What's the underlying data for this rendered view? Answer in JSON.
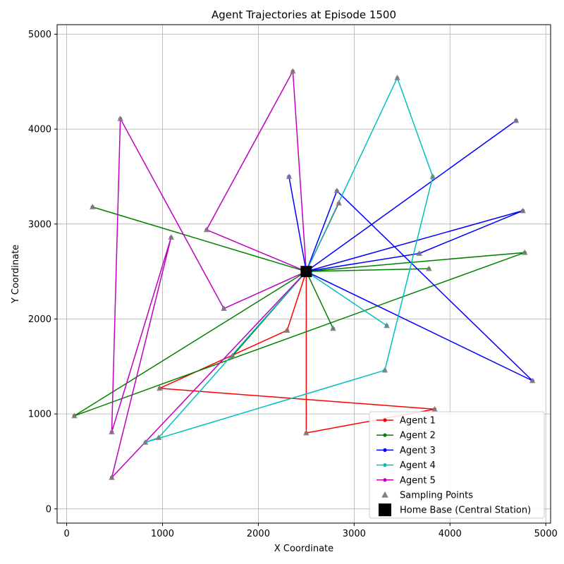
{
  "chart_data": {
    "type": "line",
    "title": "Agent Trajectories at Episode 1500",
    "xlabel": "X Coordinate",
    "ylabel": "Y Coordinate",
    "xlim": [
      -100,
      5050
    ],
    "ylim": [
      -150,
      5100
    ],
    "xticks": [
      0,
      1000,
      2000,
      3000,
      4000,
      5000
    ],
    "yticks": [
      0,
      1000,
      2000,
      3000,
      4000,
      5000
    ],
    "xtick_labels": [
      "0",
      "1000",
      "2000",
      "3000",
      "4000",
      "5000"
    ],
    "ytick_labels": [
      "0",
      "1000",
      "2000",
      "3000",
      "4000",
      "5000"
    ],
    "grid": true,
    "legend_position": "lower-right",
    "home_base": {
      "name": "Home Base (Central Station)",
      "x": 2500,
      "y": 2500,
      "color": "#000000"
    },
    "sampling_points_label": "Sampling Points",
    "sampling_points_color": "#808080",
    "series": [
      {
        "name": "Agent 1",
        "color": "#ff0000",
        "points": [
          [
            2500,
            2500
          ],
          [
            2300,
            1880
          ],
          [
            970,
            1270
          ],
          [
            3840,
            1050
          ],
          [
            2500,
            800
          ],
          [
            2500,
            2500
          ],
          [
            2840,
            3220
          ],
          [
            2500,
            2500
          ]
        ]
      },
      {
        "name": "Agent 2",
        "color": "#008000",
        "points": [
          [
            2500,
            2500
          ],
          [
            1730,
            1610
          ],
          [
            2500,
            2500
          ],
          [
            3780,
            2530
          ],
          [
            2500,
            2500
          ],
          [
            80,
            980
          ],
          [
            4780,
            2700
          ],
          [
            2500,
            2500
          ],
          [
            270,
            3180
          ],
          [
            2500,
            2500
          ],
          [
            2780,
            1900
          ],
          [
            2500,
            2500
          ]
        ]
      },
      {
        "name": "Agent 3",
        "color": "#0000ff",
        "points": [
          [
            2500,
            2500
          ],
          [
            2320,
            3500
          ],
          [
            2500,
            2500
          ],
          [
            4690,
            4090
          ],
          [
            2500,
            2500
          ],
          [
            4760,
            3140
          ],
          [
            3680,
            2690
          ],
          [
            2500,
            2500
          ],
          [
            2820,
            3350
          ],
          [
            4860,
            1350
          ],
          [
            2500,
            2500
          ]
        ]
      },
      {
        "name": "Agent 4",
        "color": "#00bfbf",
        "points": [
          [
            2500,
            2500
          ],
          [
            3450,
            4540
          ],
          [
            3820,
            3500
          ],
          [
            3320,
            1460
          ],
          [
            820,
            700
          ],
          [
            960,
            750
          ],
          [
            2500,
            2500
          ],
          [
            3340,
            1930
          ],
          [
            2500,
            2500
          ]
        ]
      },
      {
        "name": "Agent 5",
        "color": "#bf00bf",
        "points": [
          [
            2500,
            2500
          ],
          [
            470,
            330
          ],
          [
            1090,
            2860
          ],
          [
            470,
            810
          ],
          [
            560,
            4110
          ],
          [
            1640,
            2110
          ],
          [
            2500,
            2500
          ],
          [
            1460,
            2940
          ],
          [
            2360,
            4610
          ],
          [
            2500,
            2500
          ]
        ]
      }
    ]
  }
}
